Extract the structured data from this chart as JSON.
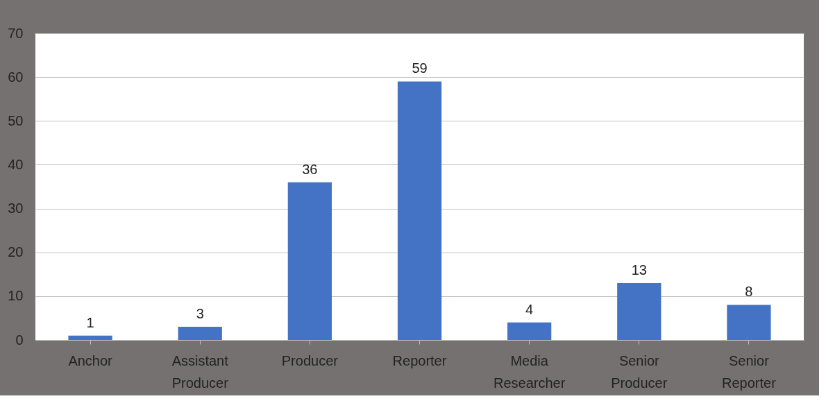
{
  "chart_data": {
    "type": "bar",
    "categories": [
      "Anchor",
      "Assistant Producer",
      "Producer",
      "Reporter",
      "Media Researcher",
      "Senior Producer",
      "Senior Reporter"
    ],
    "values": [
      1,
      3,
      36,
      59,
      4,
      13,
      8
    ],
    "color": "#4472c4",
    "ylim": [
      0,
      70
    ],
    "yticks": [
      0,
      10,
      20,
      30,
      40,
      50,
      60,
      70
    ],
    "grid": "y",
    "data_labels": true
  }
}
